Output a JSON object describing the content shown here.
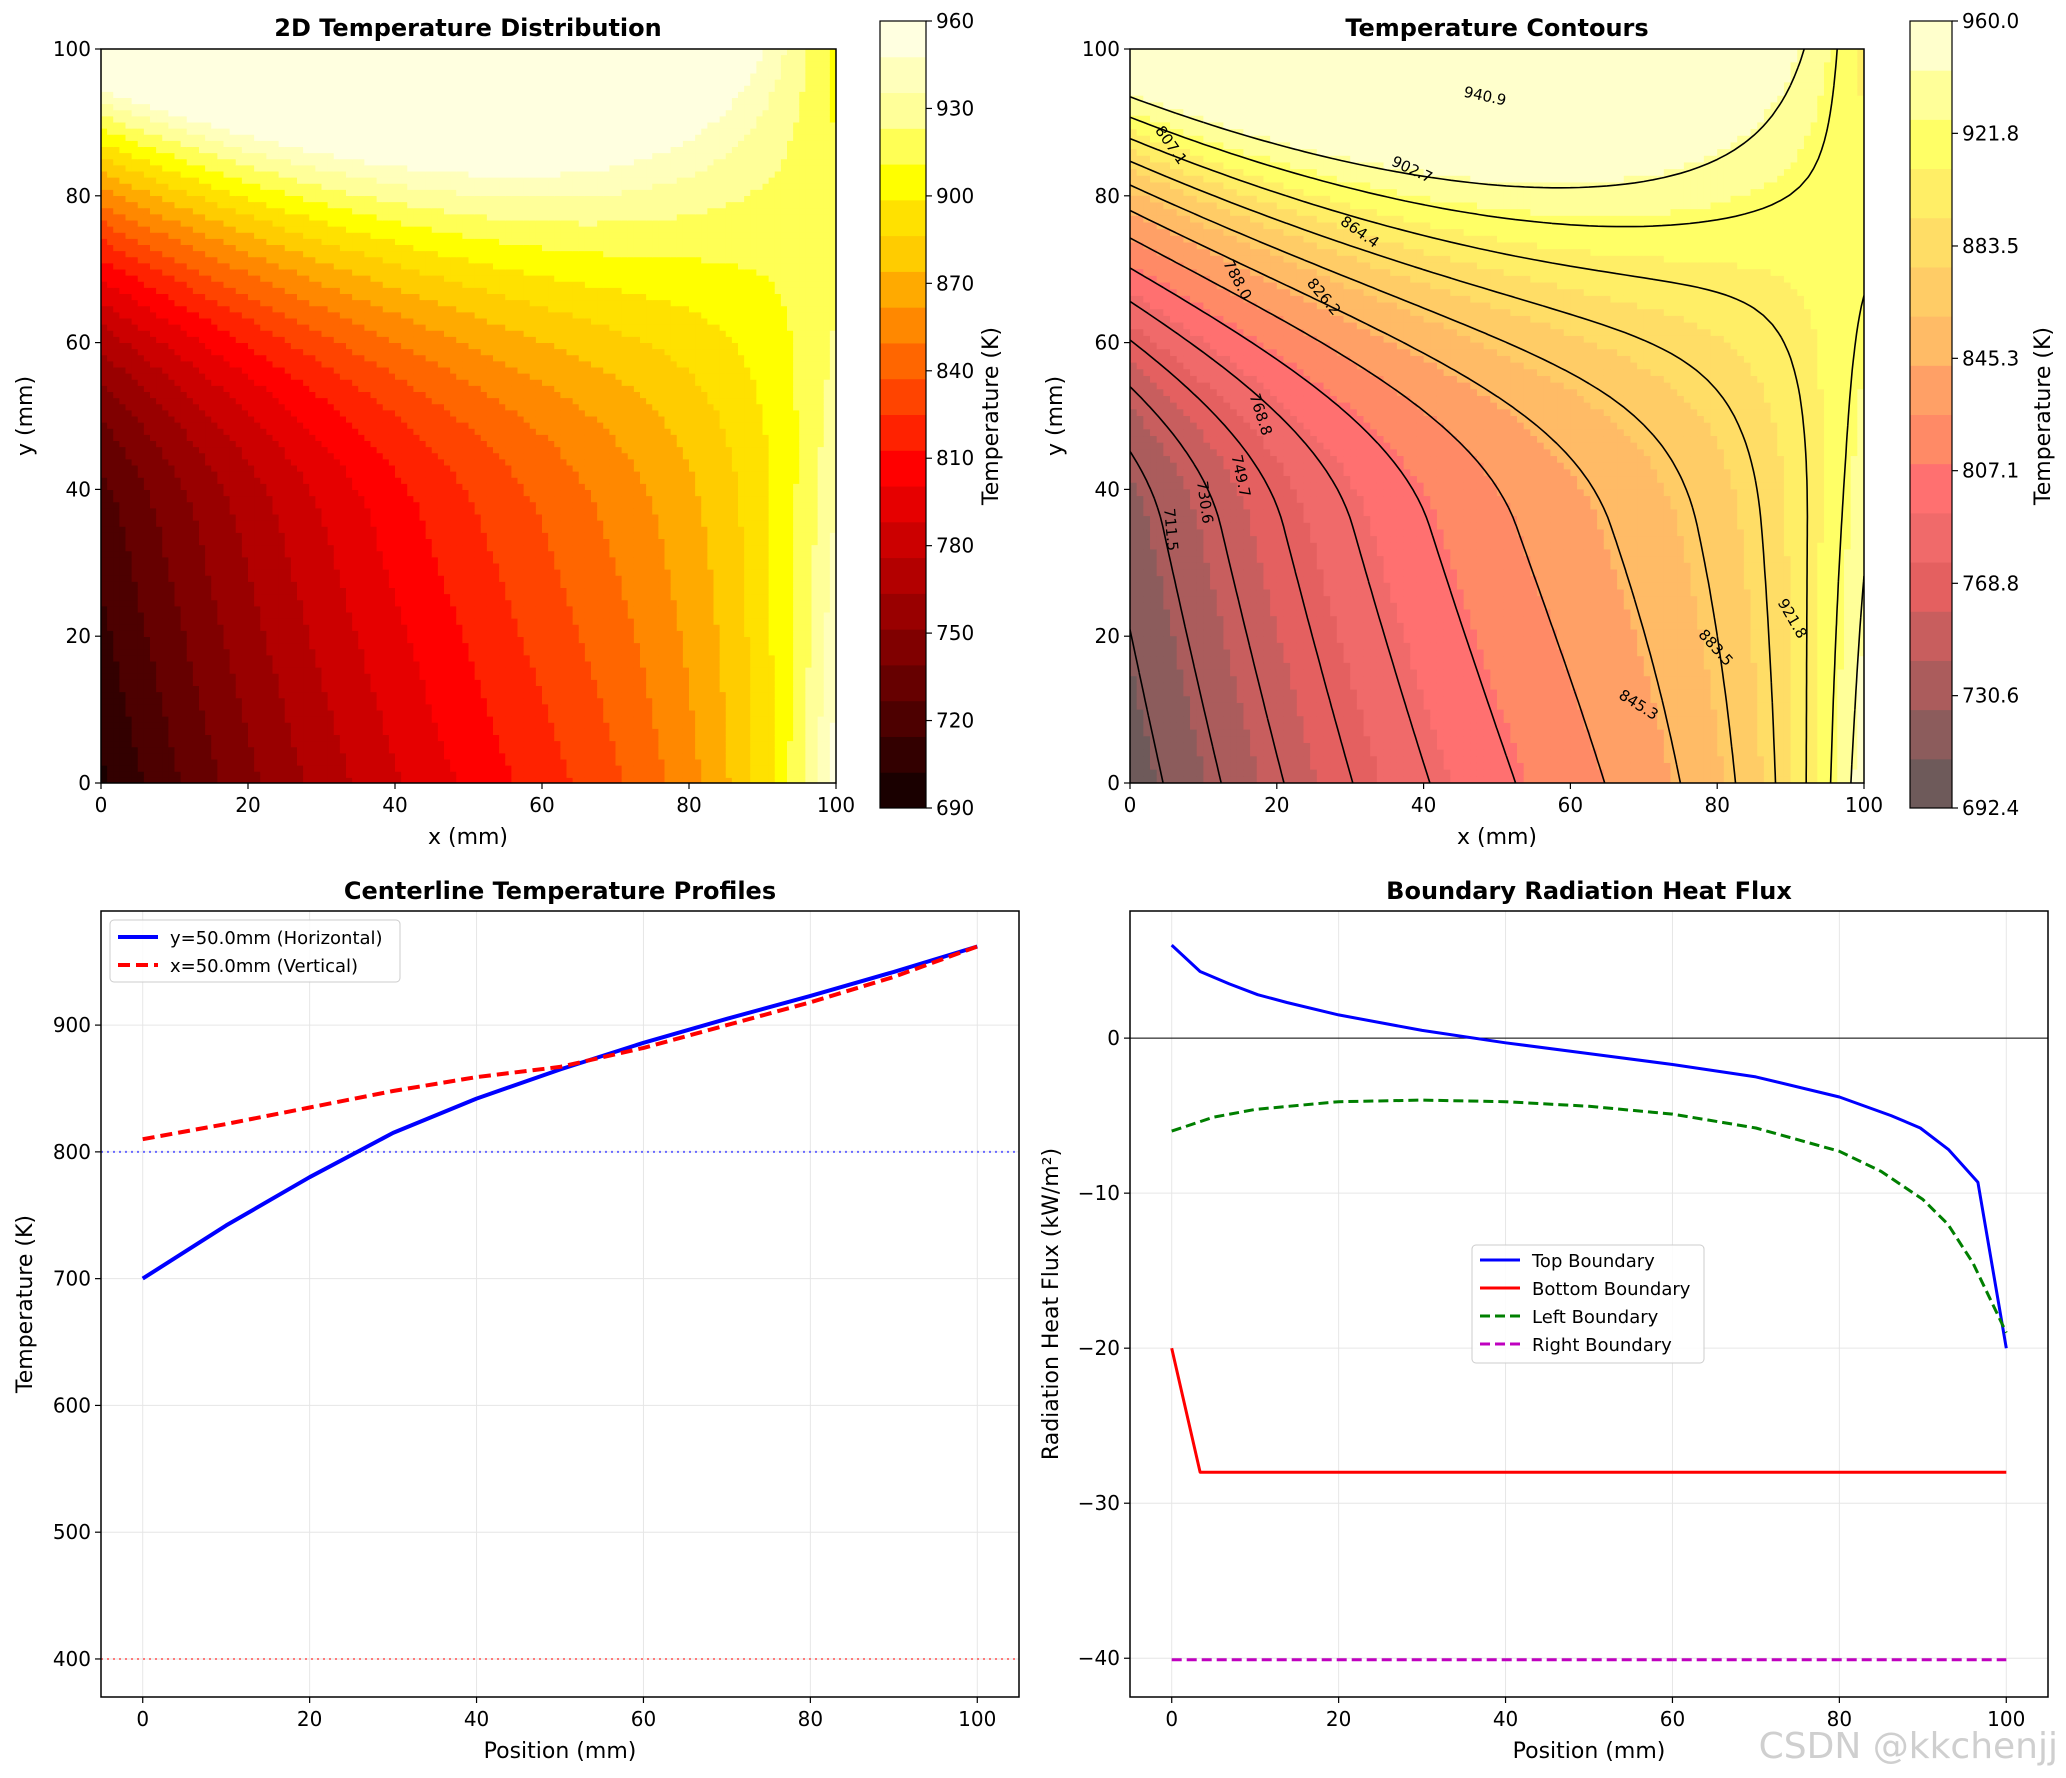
{
  "watermark": "CSDN @kkchenjj",
  "colors": {
    "hot": [
      "#1a0000",
      "#330000",
      "#4d0000",
      "#660000",
      "#800000",
      "#990000",
      "#b30000",
      "#cc0000",
      "#e60000",
      "#ff0000",
      "#ff2200",
      "#ff4400",
      "#ff6600",
      "#ff8800",
      "#ffaa00",
      "#ffcc00",
      "#ffe100",
      "#ffff00",
      "#ffff55",
      "#ffff99",
      "#ffffbb",
      "#ffffe0"
    ],
    "hot_alpha": [
      "#6e5a5a",
      "#8c5c5c",
      "#ab5c5c",
      "#c85e5e",
      "#e46060",
      "#f06a6a",
      "#ff7070",
      "#ff8a66",
      "#ffa066",
      "#ffbb66",
      "#ffcc66",
      "#ffdd66",
      "#ffee66",
      "#ffff66",
      "#ffff99",
      "#ffffcc"
    ],
    "blue": "#0000ff",
    "red": "#ff0000",
    "green": "#007f00",
    "magenta": "#bf00bf"
  },
  "chart_data": [
    {
      "type": "heatmap",
      "title": "2D Temperature Distribution",
      "xlabel": "x (mm)",
      "ylabel": "y (mm)",
      "xlim": [
        0,
        100
      ],
      "ylim": [
        0,
        100
      ],
      "xticks": [
        "0",
        "20",
        "40",
        "60",
        "80",
        "100"
      ],
      "yticks": [
        "0",
        "20",
        "40",
        "60",
        "80",
        "100"
      ],
      "colorbar": {
        "label": "Temperature (K)",
        "range": [
          690,
          960
        ],
        "ticks": [
          "690",
          "720",
          "750",
          "780",
          "810",
          "840",
          "870",
          "900",
          "930",
          "960"
        ]
      }
    },
    {
      "type": "heatmap",
      "title": "Temperature Contours",
      "xlabel": "x (mm)",
      "ylabel": "y (mm)",
      "xlim": [
        0,
        100
      ],
      "ylim": [
        0,
        100
      ],
      "xticks": [
        "0",
        "20",
        "40",
        "60",
        "80",
        "100"
      ],
      "yticks": [
        "0",
        "20",
        "40",
        "60",
        "80",
        "100"
      ],
      "contour_levels": [
        "711.5",
        "730.6",
        "749.7",
        "768.8",
        "788.0",
        "807.1",
        "826.2",
        "845.3",
        "864.4",
        "883.5",
        "902.7",
        "921.8",
        "940.9"
      ],
      "colorbar": {
        "label": "Temperature (K)",
        "range": [
          692.4,
          960.0
        ],
        "ticks": [
          "692.4",
          "730.6",
          "768.8",
          "807.1",
          "845.3",
          "883.5",
          "921.8",
          "960.0"
        ]
      }
    },
    {
      "type": "line",
      "title": "Centerline Temperature Profiles",
      "xlabel": "Position (mm)",
      "ylabel": "Temperature (K)",
      "xlim": [
        -5,
        105
      ],
      "ylim": [
        370,
        990
      ],
      "xticks": [
        "0",
        "20",
        "40",
        "60",
        "80",
        "100"
      ],
      "yticks": [
        "400",
        "500",
        "600",
        "700",
        "800",
        "900"
      ],
      "grid": true,
      "legend": "top-left",
      "x": [
        0,
        10,
        20,
        30,
        40,
        50,
        60,
        70,
        80,
        90,
        100
      ],
      "series": [
        {
          "name": "y=50.0mm (Horizontal)",
          "style": "solid",
          "values": [
            700,
            742,
            780,
            815,
            842,
            865,
            886,
            905,
            923,
            942,
            962
          ]
        },
        {
          "name": "x=50.0mm (Vertical)",
          "style": "dashed",
          "values": [
            810,
            822,
            835,
            848,
            859,
            867,
            882,
            900,
            918,
            938,
            962
          ]
        }
      ],
      "hlines": [
        {
          "value": 800,
          "color": "blue"
        },
        {
          "value": 400,
          "color": "red"
        }
      ]
    },
    {
      "type": "line",
      "title": "Boundary Radiation Heat Flux",
      "xlabel": "Position (mm)",
      "ylabel": "Radiation Heat Flux (kW/m²)",
      "xlim": [
        -5,
        105
      ],
      "ylim": [
        -42.5,
        8.2
      ],
      "xticks": [
        "0",
        "20",
        "40",
        "60",
        "80",
        "100"
      ],
      "yticks": [
        "−40",
        "−30",
        "−20",
        "−10",
        "0"
      ],
      "grid": true,
      "legend": "center",
      "series": [
        {
          "name": "Top Boundary",
          "style": "solid",
          "x": [
            0,
            3.4,
            6.9,
            10.3,
            13.8,
            20,
            30,
            40,
            50,
            60,
            70,
            80,
            86.2,
            89.7,
            93.1,
            96.6,
            100
          ],
          "values": [
            6,
            4.3,
            3.5,
            2.8,
            2.3,
            1.5,
            0.5,
            -0.3,
            -1.0,
            -1.7,
            -2.5,
            -3.8,
            -5,
            -5.8,
            -7.2,
            -9.3,
            -20
          ]
        },
        {
          "name": "Bottom Boundary",
          "style": "solid",
          "x": [
            0,
            3.4,
            10,
            20,
            40,
            60,
            80,
            100
          ],
          "values": [
            -20,
            -28,
            -28,
            -28,
            -28,
            -28,
            -28,
            -28
          ]
        },
        {
          "name": "Left Boundary",
          "style": "dashed",
          "x": [
            0,
            5,
            10,
            20,
            30,
            40,
            50,
            60,
            70,
            80,
            85,
            90,
            93,
            96,
            100
          ],
          "values": [
            -6,
            -5.1,
            -4.6,
            -4.1,
            -4.0,
            -4.1,
            -4.4,
            -4.9,
            -5.8,
            -7.3,
            -8.6,
            -10.4,
            -12,
            -14.5,
            -19
          ]
        },
        {
          "name": "Right Boundary",
          "style": "dashed",
          "x": [
            0,
            100
          ],
          "values": [
            -40.1,
            -40.1
          ]
        }
      ],
      "hlines": [
        {
          "value": 0,
          "color": "black"
        }
      ]
    }
  ]
}
